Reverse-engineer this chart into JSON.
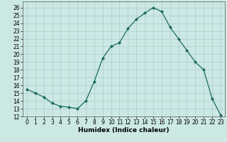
{
  "x": [
    0,
    1,
    2,
    3,
    4,
    5,
    6,
    7,
    8,
    9,
    10,
    11,
    12,
    13,
    14,
    15,
    16,
    17,
    18,
    19,
    20,
    21,
    22,
    23
  ],
  "y": [
    15.5,
    15.0,
    14.5,
    13.7,
    13.3,
    13.2,
    13.0,
    14.0,
    16.5,
    19.5,
    21.0,
    21.5,
    23.3,
    24.5,
    25.3,
    26.0,
    25.5,
    23.5,
    22.0,
    20.5,
    19.0,
    18.0,
    14.3,
    12.2
  ],
  "xlabel": "Humidex (Indice chaleur)",
  "xlim": [
    -0.5,
    23.5
  ],
  "ylim": [
    12,
    26.8
  ],
  "yticks": [
    12,
    13,
    14,
    15,
    16,
    17,
    18,
    19,
    20,
    21,
    22,
    23,
    24,
    25,
    26
  ],
  "xticks": [
    0,
    1,
    2,
    3,
    4,
    5,
    6,
    7,
    8,
    9,
    10,
    11,
    12,
    13,
    14,
    15,
    16,
    17,
    18,
    19,
    20,
    21,
    22,
    23
  ],
  "line_color": "#1a6b5e",
  "marker": "D",
  "marker_size": 2.0,
  "bg_color": "#cce8e4",
  "grid_color": "#aacccc",
  "label_fontsize": 6.5,
  "tick_fontsize": 5.5
}
